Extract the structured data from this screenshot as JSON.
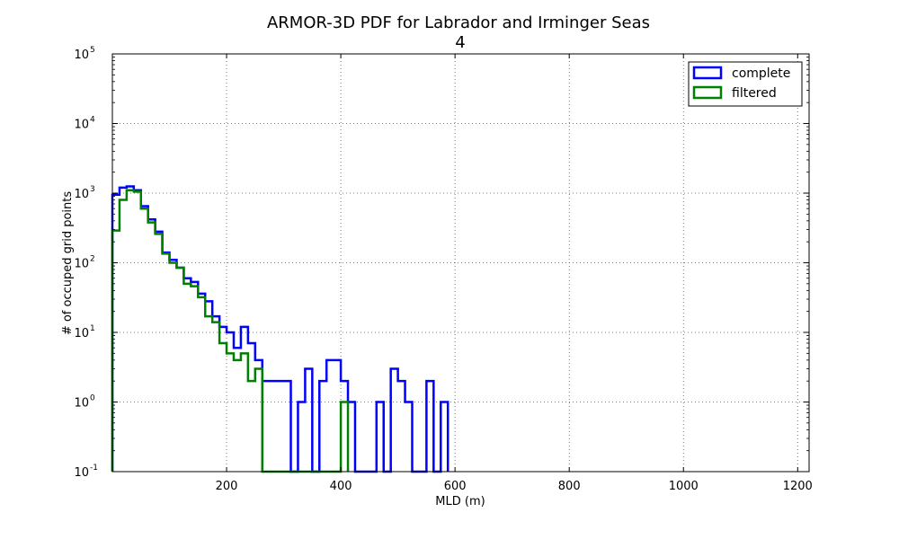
{
  "chart_data": {
    "type": "histogram-step",
    "title": "ARMOR-3D PDF for Labrador and Irminger Seas",
    "subtitle": "4",
    "xlabel": "MLD (m)",
    "ylabel": "# of occuped grid points",
    "xlim": [
      0,
      1220
    ],
    "ylim": [
      0.1,
      100000
    ],
    "yscale": "log",
    "grid": true,
    "legend_position": "top-right",
    "x_ticks": [
      {
        "value": 200,
        "label": "200"
      },
      {
        "value": 400,
        "label": "400"
      },
      {
        "value": 600,
        "label": "600"
      },
      {
        "value": 800,
        "label": "800"
      },
      {
        "value": 1000,
        "label": "1000"
      },
      {
        "value": 1200,
        "label": "1200"
      }
    ],
    "y_ticks": [
      {
        "value": 0.1,
        "base": "10",
        "exp": "-1"
      },
      {
        "value": 1,
        "base": "10",
        "exp": "0"
      },
      {
        "value": 10,
        "base": "10",
        "exp": "1"
      },
      {
        "value": 100,
        "base": "10",
        "exp": "2"
      },
      {
        "value": 1000,
        "base": "10",
        "exp": "3"
      },
      {
        "value": 10000,
        "base": "10",
        "exp": "4"
      },
      {
        "value": 100000,
        "base": "10",
        "exp": "5"
      }
    ],
    "bin_width": 12.5,
    "series": [
      {
        "name": "complete",
        "color": "#0000ff",
        "bins": [
          {
            "x0": 0,
            "y": 950
          },
          {
            "x0": 12.5,
            "y": 1200
          },
          {
            "x0": 25,
            "y": 1250
          },
          {
            "x0": 37.5,
            "y": 1100
          },
          {
            "x0": 50,
            "y": 650
          },
          {
            "x0": 62.5,
            "y": 420
          },
          {
            "x0": 75,
            "y": 280
          },
          {
            "x0": 87.5,
            "y": 140
          },
          {
            "x0": 100,
            "y": 110
          },
          {
            "x0": 112.5,
            "y": 85
          },
          {
            "x0": 125,
            "y": 60
          },
          {
            "x0": 137.5,
            "y": 53
          },
          {
            "x0": 150,
            "y": 36
          },
          {
            "x0": 162.5,
            "y": 28
          },
          {
            "x0": 175,
            "y": 17
          },
          {
            "x0": 187.5,
            "y": 12
          },
          {
            "x0": 200,
            "y": 10
          },
          {
            "x0": 212.5,
            "y": 6
          },
          {
            "x0": 225,
            "y": 12
          },
          {
            "x0": 237.5,
            "y": 7
          },
          {
            "x0": 250,
            "y": 4
          },
          {
            "x0": 262.5,
            "y": 2
          },
          {
            "x0": 275,
            "y": 2
          },
          {
            "x0": 287.5,
            "y": 2
          },
          {
            "x0": 300,
            "y": 2
          },
          {
            "x0": 312.5,
            "y": 0
          },
          {
            "x0": 325,
            "y": 1
          },
          {
            "x0": 337.5,
            "y": 3
          },
          {
            "x0": 350,
            "y": 0
          },
          {
            "x0": 362.5,
            "y": 2
          },
          {
            "x0": 375,
            "y": 4
          },
          {
            "x0": 387.5,
            "y": 4
          },
          {
            "x0": 400,
            "y": 2
          },
          {
            "x0": 412.5,
            "y": 1
          },
          {
            "x0": 425,
            "y": 0
          },
          {
            "x0": 437.5,
            "y": 0
          },
          {
            "x0": 450,
            "y": 0
          },
          {
            "x0": 462.5,
            "y": 1
          },
          {
            "x0": 475,
            "y": 0
          },
          {
            "x0": 487.5,
            "y": 3
          },
          {
            "x0": 500,
            "y": 2
          },
          {
            "x0": 512.5,
            "y": 1
          },
          {
            "x0": 525,
            "y": 0
          },
          {
            "x0": 537.5,
            "y": 0
          },
          {
            "x0": 550,
            "y": 2
          },
          {
            "x0": 562.5,
            "y": 0
          },
          {
            "x0": 575,
            "y": 1
          }
        ]
      },
      {
        "name": "filtered",
        "color": "#008000",
        "bins": [
          {
            "x0": 0,
            "y": 290
          },
          {
            "x0": 12.5,
            "y": 800
          },
          {
            "x0": 25,
            "y": 1100
          },
          {
            "x0": 37.5,
            "y": 1050
          },
          {
            "x0": 50,
            "y": 600
          },
          {
            "x0": 62.5,
            "y": 380
          },
          {
            "x0": 75,
            "y": 260
          },
          {
            "x0": 87.5,
            "y": 135
          },
          {
            "x0": 100,
            "y": 100
          },
          {
            "x0": 112.5,
            "y": 85
          },
          {
            "x0": 125,
            "y": 50
          },
          {
            "x0": 137.5,
            "y": 46
          },
          {
            "x0": 150,
            "y": 32
          },
          {
            "x0": 162.5,
            "y": 17
          },
          {
            "x0": 175,
            "y": 14
          },
          {
            "x0": 187.5,
            "y": 7
          },
          {
            "x0": 200,
            "y": 5
          },
          {
            "x0": 212.5,
            "y": 4
          },
          {
            "x0": 225,
            "y": 5
          },
          {
            "x0": 237.5,
            "y": 2
          },
          {
            "x0": 250,
            "y": 3
          },
          {
            "x0": 262.5,
            "y": 0
          },
          {
            "x0": 275,
            "y": 0
          },
          {
            "x0": 287.5,
            "y": 0
          },
          {
            "x0": 300,
            "y": 0
          },
          {
            "x0": 312.5,
            "y": 0
          },
          {
            "x0": 325,
            "y": 0
          },
          {
            "x0": 337.5,
            "y": 0
          },
          {
            "x0": 350,
            "y": 0
          },
          {
            "x0": 362.5,
            "y": 0
          },
          {
            "x0": 375,
            "y": 0
          },
          {
            "x0": 387.5,
            "y": 0
          },
          {
            "x0": 400,
            "y": 1
          }
        ]
      }
    ]
  }
}
